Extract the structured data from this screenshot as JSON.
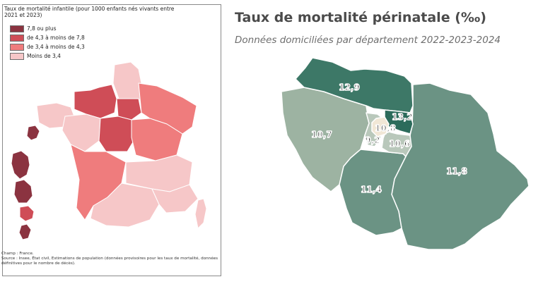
{
  "left": {
    "legend": {
      "title": "Taux de mortalité infantile (pour 1000 enfants nés vivants entre 2021 et 2023)",
      "items": [
        {
          "label": "7,8 ou plus",
          "color": "#8b3340"
        },
        {
          "label": "de 4,3 à moins de 7,8",
          "color": "#cf4d57"
        },
        {
          "label": "de 3,4 à moins de 4,3",
          "color": "#ef7c7d"
        },
        {
          "label": "Moins de 3,4",
          "color": "#f6c7c8"
        }
      ]
    },
    "source": {
      "champ": "Champ : France.",
      "text": "Source : Insee, État civil, Estimations de population (données provisoires pour les taux de mortalité, données définitives pour le nombre de décès)."
    }
  },
  "right": {
    "title": "Taux de mortalité périnatale (‰)",
    "subtitle": "Données domiciliées par département 2022-2023-2024",
    "departments": [
      {
        "value": "12,9",
        "color": "#3d7867"
      },
      {
        "value": "13,2",
        "color": "#2c6b5b"
      },
      {
        "value": "10,7",
        "color": "#9db3a2"
      },
      {
        "value": "10,8",
        "color": "#b9c8bb"
      },
      {
        "value": "9,2",
        "color": "#f1e7d6"
      },
      {
        "value": "10,6",
        "color": "#b9c8bb"
      },
      {
        "value": "11,4",
        "color": "#6b9384"
      },
      {
        "value": "11,8",
        "color": "#6b9384"
      }
    ]
  }
}
